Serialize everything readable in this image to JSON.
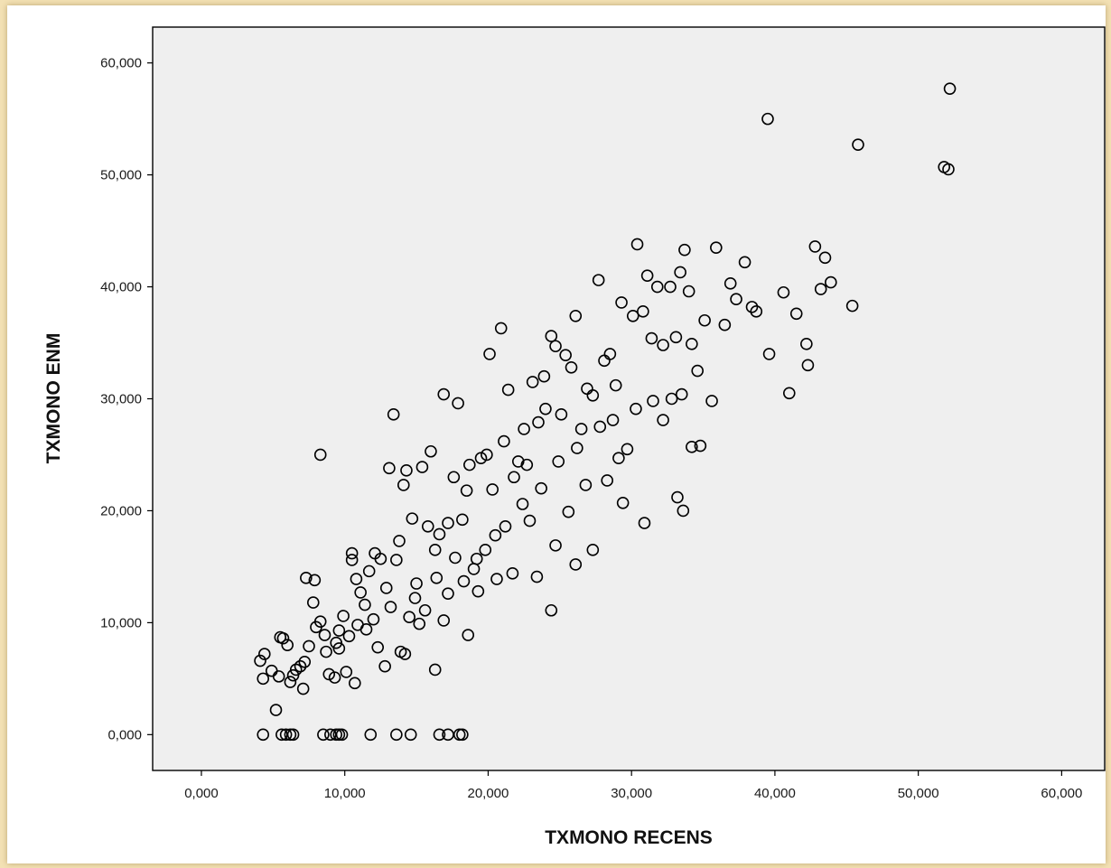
{
  "chart_data": {
    "type": "scatter",
    "title": "",
    "xlabel": "TXMONO RECENS",
    "ylabel": "TXMONO ENM",
    "xlim": [
      -3.4,
      63
    ],
    "ylim": [
      -3.2,
      63.2
    ],
    "xticks": [
      0,
      10,
      20,
      30,
      40,
      50,
      60
    ],
    "yticks": [
      0,
      10,
      20,
      30,
      40,
      50,
      60
    ],
    "xtick_labels": [
      "0,000",
      "10,000",
      "20,000",
      "30,000",
      "40,000",
      "50,000",
      "60,000"
    ],
    "ytick_labels": [
      "0,000",
      "10,000",
      "20,000",
      "30,000",
      "40,000",
      "50,000",
      "60,000"
    ],
    "grid": false,
    "legend": "none",
    "marker": "open-circle",
    "plot_background": "#efefef",
    "series": [
      {
        "points": [
          [
            4.1,
            6.6
          ],
          [
            4.4,
            7.2
          ],
          [
            4.3,
            5.0
          ],
          [
            4.9,
            5.7
          ],
          [
            5.2,
            2.2
          ],
          [
            5.5,
            8.7
          ],
          [
            5.4,
            5.2
          ],
          [
            5.7,
            8.6
          ],
          [
            6.0,
            8.0
          ],
          [
            6.2,
            4.7
          ],
          [
            6.6,
            5.8
          ],
          [
            6.9,
            6.1
          ],
          [
            7.2,
            6.5
          ],
          [
            7.5,
            7.9
          ],
          [
            7.1,
            4.1
          ],
          [
            7.3,
            14.0
          ],
          [
            7.9,
            13.8
          ],
          [
            7.8,
            11.8
          ],
          [
            8.3,
            10.1
          ],
          [
            8.0,
            9.6
          ],
          [
            8.6,
            8.9
          ],
          [
            8.9,
            5.4
          ],
          [
            9.3,
            5.1
          ],
          [
            9.6,
            7.7
          ],
          [
            9.6,
            9.3
          ],
          [
            9.9,
            10.6
          ],
          [
            10.3,
            8.8
          ],
          [
            10.5,
            15.6
          ],
          [
            10.5,
            16.2
          ],
          [
            10.8,
            13.9
          ],
          [
            11.1,
            12.7
          ],
          [
            11.4,
            11.6
          ],
          [
            11.7,
            14.6
          ],
          [
            12.1,
            16.2
          ],
          [
            12.5,
            15.7
          ],
          [
            12.9,
            13.1
          ],
          [
            13.1,
            23.8
          ],
          [
            13.6,
            15.6
          ],
          [
            13.8,
            17.3
          ],
          [
            14.1,
            22.3
          ],
          [
            14.3,
            23.6
          ],
          [
            14.7,
            19.3
          ],
          [
            15.0,
            13.5
          ],
          [
            15.4,
            23.9
          ],
          [
            15.8,
            18.6
          ],
          [
            16.0,
            25.3
          ],
          [
            16.3,
            16.5
          ],
          [
            16.6,
            17.9
          ],
          [
            16.9,
            30.4
          ],
          [
            17.2,
            18.9
          ],
          [
            17.6,
            23.0
          ],
          [
            17.9,
            29.6
          ],
          [
            18.2,
            19.2
          ],
          [
            18.5,
            21.8
          ],
          [
            18.7,
            24.1
          ],
          [
            19.2,
            15.7
          ],
          [
            19.5,
            24.7
          ],
          [
            19.9,
            25.0
          ],
          [
            20.3,
            21.9
          ],
          [
            20.1,
            34.0
          ],
          [
            20.9,
            36.3
          ],
          [
            21.4,
            30.8
          ],
          [
            21.1,
            26.2
          ],
          [
            21.8,
            23.0
          ],
          [
            22.1,
            24.4
          ],
          [
            22.5,
            27.3
          ],
          [
            22.7,
            24.1
          ],
          [
            23.1,
            31.5
          ],
          [
            23.5,
            27.9
          ],
          [
            23.9,
            32.0
          ],
          [
            24.0,
            29.1
          ],
          [
            24.4,
            35.6
          ],
          [
            24.7,
            34.7
          ],
          [
            25.1,
            28.6
          ],
          [
            25.4,
            33.9
          ],
          [
            25.8,
            32.8
          ],
          [
            26.1,
            37.4
          ],
          [
            26.5,
            27.3
          ],
          [
            26.9,
            30.9
          ],
          [
            27.3,
            30.3
          ],
          [
            27.7,
            40.6
          ],
          [
            28.1,
            33.4
          ],
          [
            28.5,
            34.0
          ],
          [
            28.9,
            31.2
          ],
          [
            29.3,
            38.6
          ],
          [
            29.7,
            25.5
          ],
          [
            30.1,
            37.4
          ],
          [
            30.4,
            43.8
          ],
          [
            30.8,
            37.8
          ],
          [
            31.1,
            41.0
          ],
          [
            31.4,
            35.4
          ],
          [
            31.8,
            40.0
          ],
          [
            32.2,
            34.8
          ],
          [
            32.7,
            40.0
          ],
          [
            33.1,
            35.5
          ],
          [
            33.4,
            41.3
          ],
          [
            33.7,
            43.3
          ],
          [
            34.0,
            39.6
          ],
          [
            34.2,
            34.9
          ],
          [
            34.6,
            32.5
          ],
          [
            35.1,
            37.0
          ],
          [
            35.6,
            29.8
          ],
          [
            35.9,
            43.5
          ],
          [
            36.5,
            36.6
          ],
          [
            36.9,
            40.3
          ],
          [
            37.3,
            38.9
          ],
          [
            37.9,
            42.2
          ],
          [
            38.4,
            38.2
          ],
          [
            38.7,
            37.8
          ],
          [
            39.6,
            34.0
          ],
          [
            40.6,
            39.5
          ],
          [
            41.0,
            30.5
          ],
          [
            41.5,
            37.6
          ],
          [
            42.2,
            34.9
          ],
          [
            42.3,
            33.0
          ],
          [
            42.8,
            43.6
          ],
          [
            43.2,
            39.8
          ],
          [
            43.5,
            42.6
          ],
          [
            43.9,
            40.4
          ],
          [
            45.4,
            38.3
          ],
          [
            39.5,
            55.0
          ],
          [
            45.8,
            52.7
          ],
          [
            51.8,
            50.7
          ],
          [
            52.1,
            50.5
          ],
          [
            52.2,
            57.7
          ],
          [
            8.3,
            25.0
          ],
          [
            13.4,
            28.6
          ],
          [
            16.3,
            5.8
          ],
          [
            24.4,
            11.1
          ],
          [
            29.4,
            20.7
          ],
          [
            30.9,
            18.9
          ],
          [
            33.6,
            20.0
          ],
          [
            34.8,
            25.8
          ],
          [
            34.2,
            25.7
          ],
          [
            33.2,
            21.2
          ],
          [
            14.5,
            10.5
          ],
          [
            15.2,
            9.9
          ],
          [
            16.9,
            10.2
          ],
          [
            18.6,
            8.9
          ],
          [
            19.3,
            12.8
          ],
          [
            20.6,
            13.9
          ],
          [
            21.7,
            14.4
          ],
          [
            23.4,
            14.1
          ],
          [
            24.7,
            16.9
          ],
          [
            26.1,
            15.2
          ],
          [
            27.3,
            16.5
          ],
          [
            25.6,
            19.9
          ],
          [
            26.8,
            22.3
          ],
          [
            28.3,
            22.7
          ],
          [
            29.1,
            24.7
          ],
          [
            30.3,
            29.1
          ],
          [
            31.5,
            29.8
          ],
          [
            32.2,
            28.1
          ],
          [
            32.8,
            30.0
          ],
          [
            33.5,
            30.4
          ],
          [
            11.5,
            9.4
          ],
          [
            12.3,
            7.8
          ],
          [
            13.9,
            7.4
          ],
          [
            15.6,
            11.1
          ],
          [
            17.2,
            12.6
          ],
          [
            18.3,
            13.7
          ],
          [
            19.8,
            16.5
          ],
          [
            21.2,
            18.6
          ],
          [
            22.4,
            20.6
          ],
          [
            23.7,
            22.0
          ],
          [
            24.9,
            24.4
          ],
          [
            26.2,
            25.6
          ],
          [
            27.8,
            27.5
          ],
          [
            28.7,
            28.1
          ],
          [
            22.9,
            19.1
          ],
          [
            20.5,
            17.8
          ],
          [
            19.0,
            14.8
          ],
          [
            17.7,
            15.8
          ],
          [
            16.4,
            14.0
          ],
          [
            14.9,
            12.2
          ],
          [
            13.2,
            11.4
          ],
          [
            12.0,
            10.3
          ],
          [
            10.9,
            9.8
          ],
          [
            9.4,
            8.2
          ],
          [
            8.7,
            7.4
          ],
          [
            6.4,
            5.3
          ],
          [
            10.7,
            4.6
          ],
          [
            12.8,
            6.1
          ],
          [
            14.2,
            7.2
          ],
          [
            10.1,
            5.6
          ],
          [
            4.3,
            0.0
          ],
          [
            5.6,
            0.0
          ],
          [
            5.9,
            0.0
          ],
          [
            6.2,
            0.0
          ],
          [
            6.4,
            0.0
          ],
          [
            8.5,
            0.0
          ],
          [
            9.0,
            0.0
          ],
          [
            9.4,
            0.0
          ],
          [
            9.6,
            0.0
          ],
          [
            9.8,
            0.0
          ],
          [
            11.8,
            0.0
          ],
          [
            13.6,
            0.0
          ],
          [
            14.6,
            0.0
          ],
          [
            16.6,
            0.0
          ],
          [
            17.2,
            0.0
          ],
          [
            18.0,
            0.0
          ],
          [
            18.2,
            0.0
          ]
        ]
      }
    ]
  }
}
